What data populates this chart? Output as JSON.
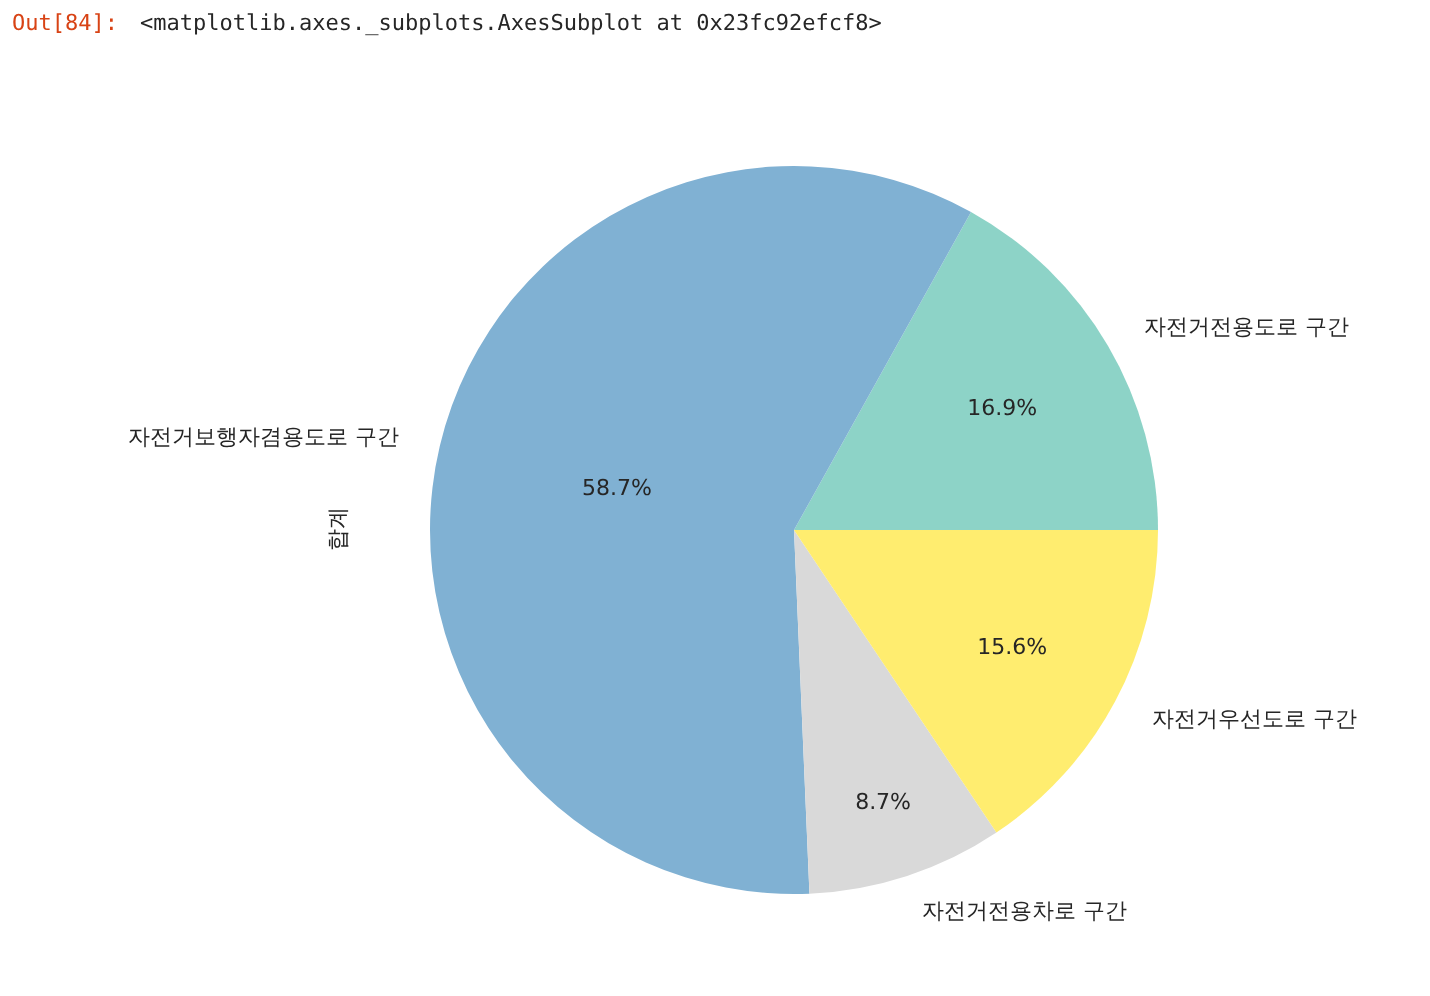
{
  "chart_data": {
    "type": "pie",
    "ylabel": "합계",
    "annotations": [
      "Out[84]:",
      "<matplotlib.axes._subplots.AxesSubplot at 0x23fc92efcf8>"
    ],
    "categories": [
      "자전거전용도로 구간",
      "자전거보행자겸용도로 구간",
      "자전거전용차로 구간",
      "자전거우선도로 구간"
    ],
    "values": [
      16.9,
      58.7,
      8.7,
      15.6
    ],
    "value_labels": [
      "16.9%",
      "58.7%",
      "8.7%",
      "15.6%"
    ],
    "colors": [
      "#8dd3c7",
      "#80b1d3",
      "#d9d9d9",
      "#ffed6f"
    ],
    "legend": false
  }
}
